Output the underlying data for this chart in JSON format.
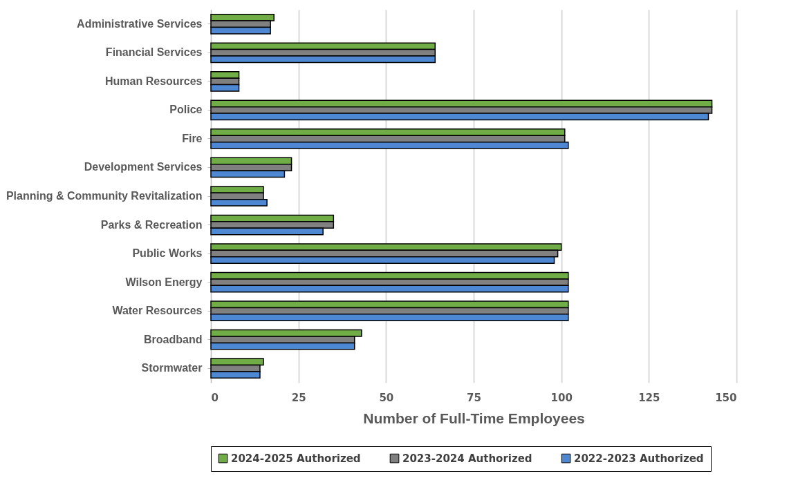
{
  "chart_data": {
    "type": "bar",
    "orientation": "horizontal",
    "xlabel": "Number of Full-Time Employees",
    "categories": [
      "Administrative Services",
      "Financial Services",
      "Human Resources",
      "Police",
      "Fire",
      "Development Services",
      "Planning & Community Revitalization",
      "Parks & Recreation",
      "Public Works",
      "Wilson Energy",
      "Water Resources",
      "Broadband",
      "Stormwater"
    ],
    "series": [
      {
        "name": "2024-2025 Authorized",
        "color": "#70ad47",
        "values": [
          18,
          64,
          8,
          143,
          101,
          23,
          15,
          35,
          100,
          102,
          102,
          43,
          15
        ]
      },
      {
        "name": "2023-2024 Authorized",
        "color": "#808080",
        "values": [
          17,
          64,
          8,
          143,
          101,
          23,
          15,
          35,
          99,
          102,
          102,
          41,
          14
        ]
      },
      {
        "name": "2022-2023 Authorized",
        "color": "#4f88d2",
        "values": [
          17,
          64,
          8,
          142,
          102,
          21,
          16,
          32,
          98,
          102,
          102,
          41,
          14
        ]
      }
    ],
    "xlim": [
      0,
      150
    ],
    "xticks": [
      0,
      25,
      50,
      75,
      100,
      125,
      150
    ],
    "grid": "x",
    "legend": "bottom"
  }
}
